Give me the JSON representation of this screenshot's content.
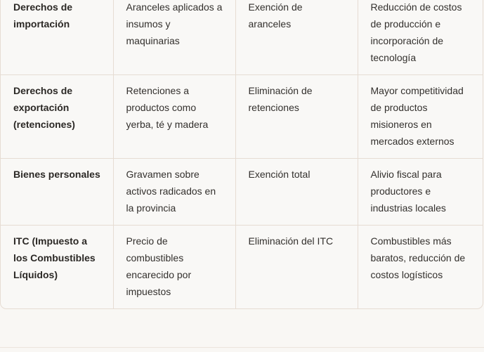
{
  "rows": [
    {
      "tax": "Derechos de importación",
      "situation": "Aranceles aplicados a insumos y maquinarias",
      "measure": "Exención de aranceles",
      "impact": "Reducción de costos de producción e incorporación de tecnología"
    },
    {
      "tax": "Derechos de exportación (retenciones)",
      "situation": "Retenciones a productos como yerba, té y madera",
      "measure": "Eliminación de retenciones",
      "impact": "Mayor competitividad de productos misioneros en mercados externos"
    },
    {
      "tax": "Bienes personales",
      "situation": "Gravamen sobre activos radicados en la provincia",
      "measure": "Exención total",
      "impact": "Alivio fiscal para productores e industrias locales"
    },
    {
      "tax": "ITC (Impuesto a los Combustibles Líquidos)",
      "situation": "Precio de combustibles encarecido por impuestos",
      "measure": "Eliminación del ITC",
      "impact": "Combustibles más baratos, reducción de costos logísticos"
    }
  ]
}
